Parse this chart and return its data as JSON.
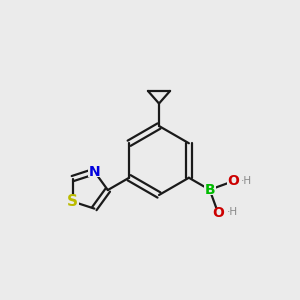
{
  "bg_color": "#ebebeb",
  "bond_color": "#1a1a1a",
  "bond_width": 1.6,
  "atom_colors": {
    "B": "#00bb00",
    "O": "#cc0000",
    "N": "#0000dd",
    "S": "#bbbb00",
    "C": "#1a1a1a",
    "H": "#888888"
  },
  "font_size_atom": 10,
  "font_size_h": 7.5
}
